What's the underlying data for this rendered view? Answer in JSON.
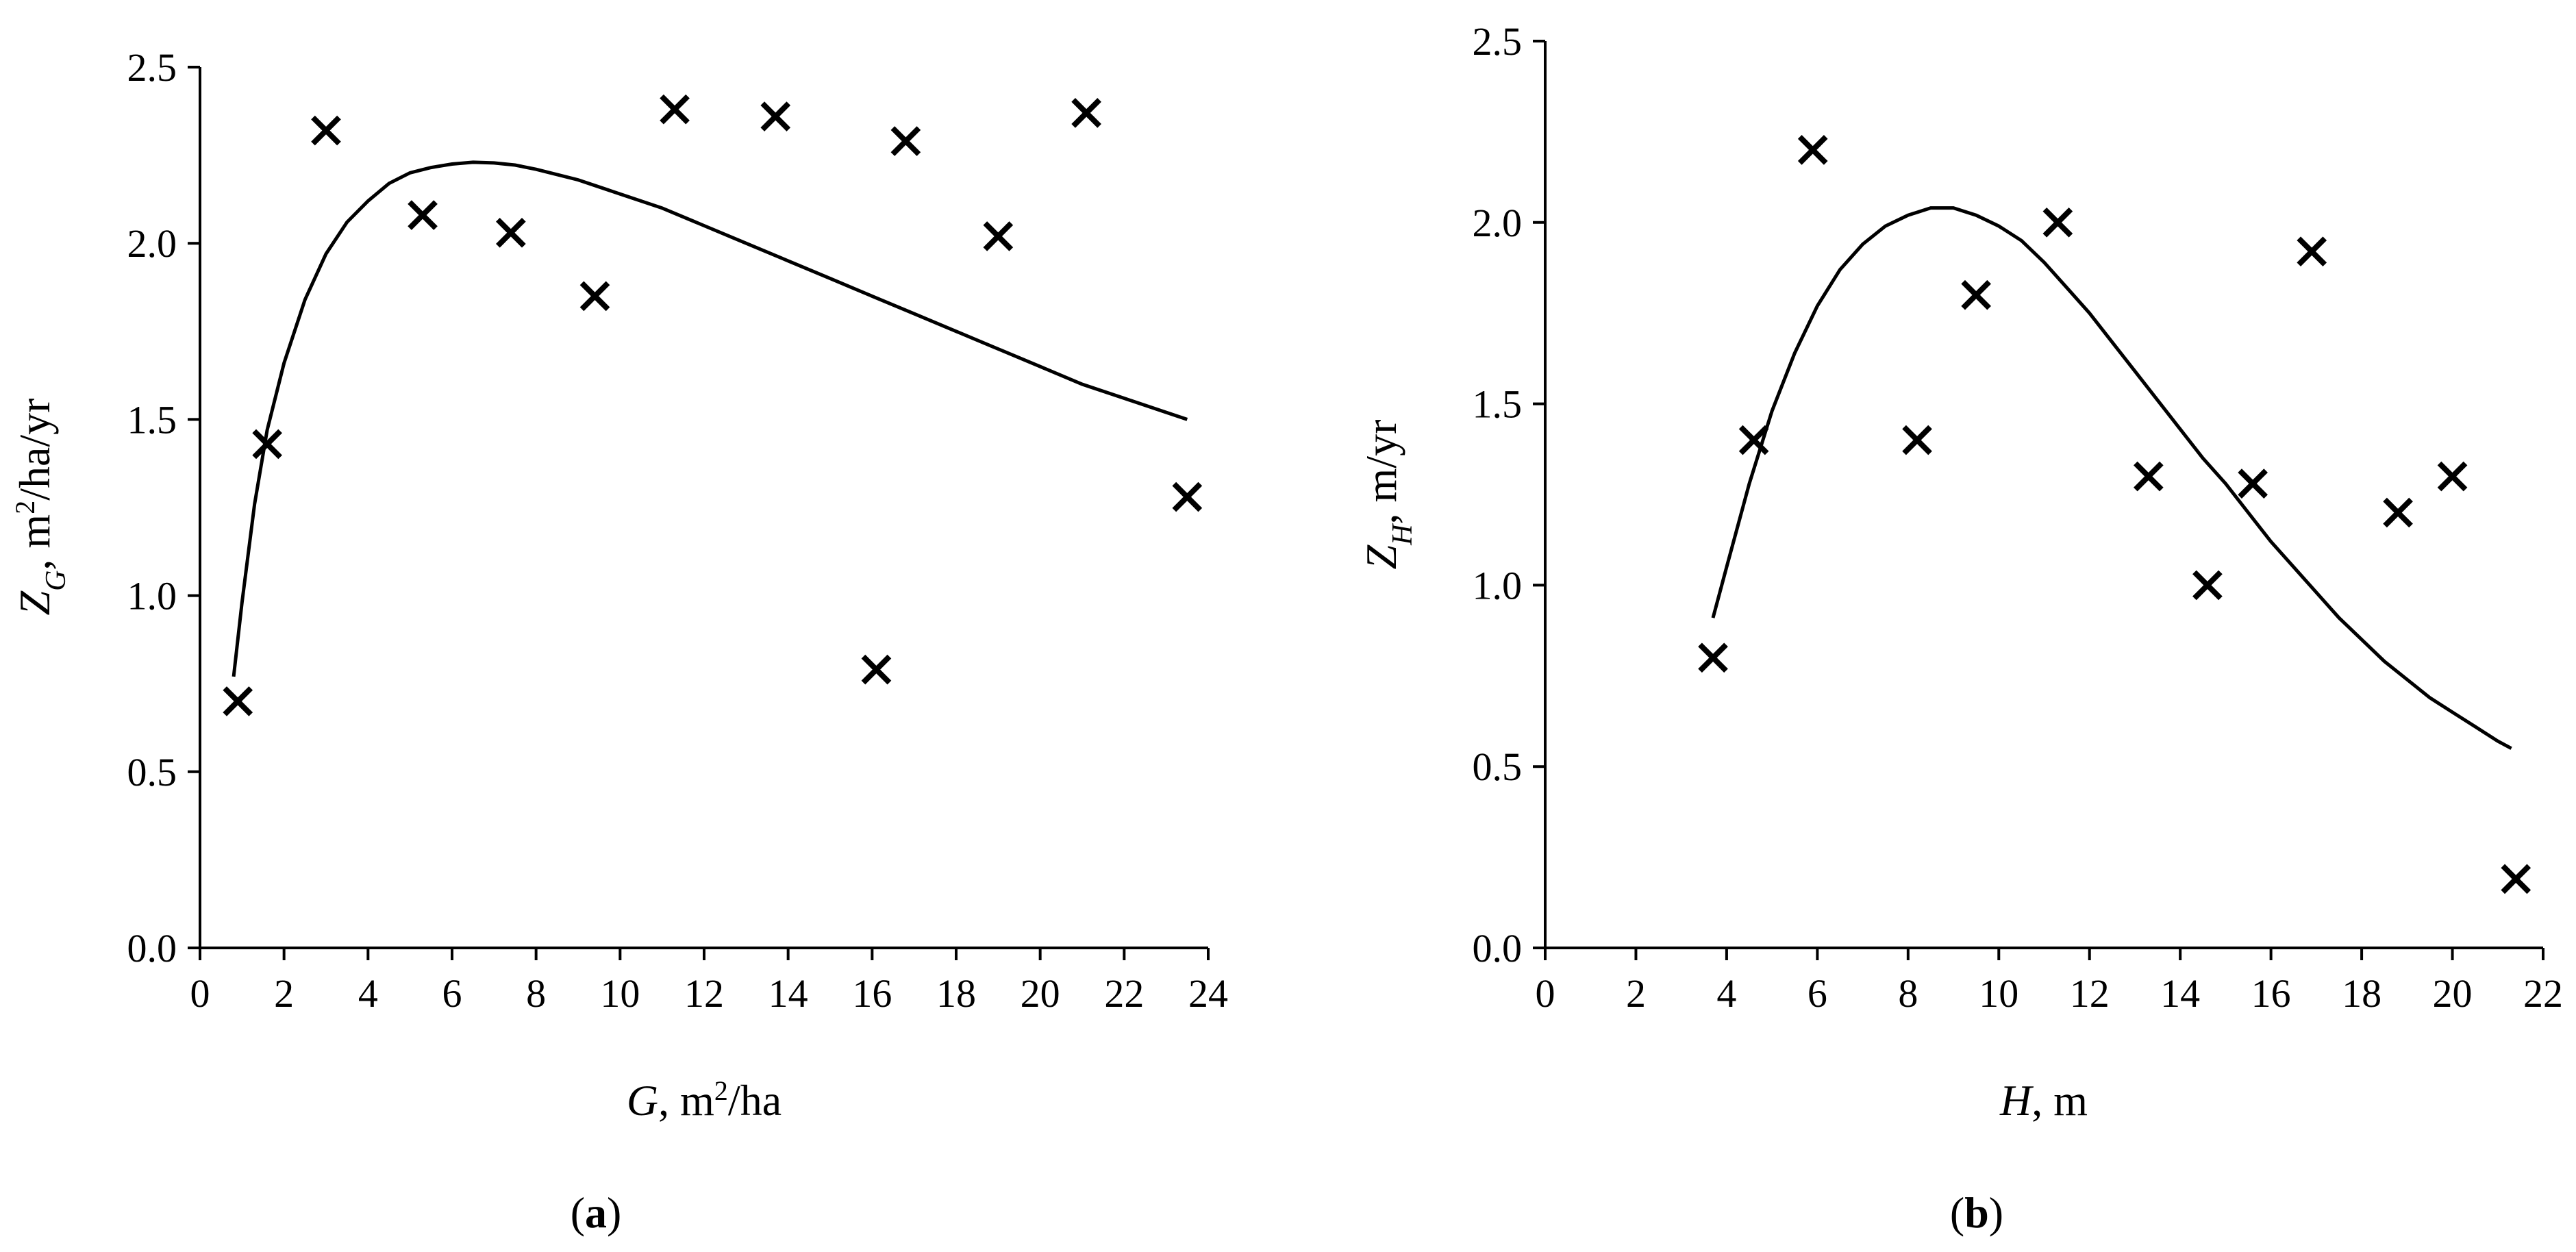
{
  "chart_data": [
    {
      "type": "scatter",
      "panel_label": "a",
      "xlabel": {
        "var": "G",
        "unit_prefix": ", m",
        "unit_sup": "2",
        "unit_suffix": "/ha"
      },
      "ylabel": {
        "var": "Z",
        "sub": "G",
        "unit_prefix": ", m",
        "unit_sup": "2",
        "unit_suffix": "/ha/yr"
      },
      "xlim": [
        0,
        24
      ],
      "ylim": [
        0,
        2.5
      ],
      "x_ticks": [
        "0",
        "2",
        "4",
        "6",
        "8",
        "10",
        "12",
        "14",
        "16",
        "18",
        "20",
        "22",
        "24"
      ],
      "y_ticks": [
        "0.0",
        "0.5",
        "1.0",
        "1.5",
        "2.0",
        "2.5"
      ],
      "grid": false,
      "series": [
        {
          "kind": "points",
          "marker": "x",
          "x": [
            0.9,
            1.6,
            3.0,
            5.3,
            7.4,
            9.4,
            11.3,
            13.7,
            16.1,
            16.8,
            19.0,
            21.1,
            23.5
          ],
          "y": [
            0.7,
            1.43,
            2.32,
            2.08,
            2.03,
            1.85,
            2.38,
            2.36,
            0.79,
            2.29,
            2.02,
            2.37,
            1.28
          ]
        },
        {
          "kind": "line",
          "x": [
            0.8,
            1.0,
            1.3,
            1.6,
            2.0,
            2.5,
            3.0,
            3.5,
            4.0,
            4.5,
            5.0,
            5.5,
            6.0,
            6.5,
            7.0,
            7.5,
            8.0,
            9.0,
            10.0,
            11.0,
            12.0,
            13.0,
            14.0,
            15.0,
            16.0,
            17.0,
            18.0,
            19.0,
            20.0,
            21.0,
            22.0,
            23.0,
            23.5
          ],
          "y": [
            0.77,
            0.98,
            1.26,
            1.47,
            1.66,
            1.84,
            1.97,
            2.06,
            2.12,
            2.17,
            2.2,
            2.215,
            2.225,
            2.23,
            2.228,
            2.222,
            2.21,
            2.18,
            2.14,
            2.1,
            2.05,
            2.0,
            1.95,
            1.9,
            1.85,
            1.8,
            1.75,
            1.7,
            1.65,
            1.6,
            1.56,
            1.52,
            1.5
          ]
        }
      ]
    },
    {
      "type": "scatter",
      "panel_label": "b",
      "xlabel": {
        "var": "H",
        "unit_prefix": ", m",
        "unit_sup": "",
        "unit_suffix": ""
      },
      "ylabel": {
        "var": "Z",
        "sub": "H",
        "unit_prefix": ", m/yr",
        "unit_sup": "",
        "unit_suffix": ""
      },
      "xlim": [
        0,
        22
      ],
      "ylim": [
        0,
        2.5
      ],
      "x_ticks": [
        "0",
        "2",
        "4",
        "6",
        "8",
        "10",
        "12",
        "14",
        "16",
        "18",
        "20",
        "22"
      ],
      "y_ticks": [
        "0.0",
        "0.5",
        "1.0",
        "1.5",
        "2.0",
        "2.5"
      ],
      "grid": false,
      "series": [
        {
          "kind": "points",
          "marker": "x",
          "x": [
            3.7,
            4.6,
            5.9,
            8.2,
            9.5,
            11.3,
            13.3,
            14.6,
            15.6,
            16.9,
            18.8,
            20.0,
            21.4
          ],
          "y": [
            0.8,
            1.4,
            2.2,
            1.4,
            1.8,
            2.0,
            1.3,
            1.0,
            1.28,
            1.92,
            1.2,
            1.3,
            0.19
          ]
        },
        {
          "kind": "line",
          "x": [
            3.7,
            4.0,
            4.5,
            5.0,
            5.5,
            6.0,
            6.5,
            7.0,
            7.5,
            8.0,
            8.5,
            9.0,
            9.5,
            10.0,
            10.5,
            11.0,
            11.5,
            12.0,
            12.5,
            13.0,
            13.5,
            14.0,
            14.5,
            15.0,
            15.5,
            16.0,
            16.5,
            17.0,
            17.5,
            18.0,
            18.5,
            19.0,
            19.5,
            20.0,
            20.5,
            21.0,
            21.3
          ],
          "y": [
            0.91,
            1.05,
            1.28,
            1.48,
            1.64,
            1.77,
            1.87,
            1.94,
            1.99,
            2.02,
            2.04,
            2.04,
            2.02,
            1.99,
            1.95,
            1.89,
            1.82,
            1.75,
            1.67,
            1.59,
            1.51,
            1.43,
            1.35,
            1.28,
            1.2,
            1.12,
            1.05,
            0.98,
            0.91,
            0.85,
            0.79,
            0.74,
            0.69,
            0.65,
            0.61,
            0.57,
            0.55
          ]
        }
      ]
    }
  ]
}
